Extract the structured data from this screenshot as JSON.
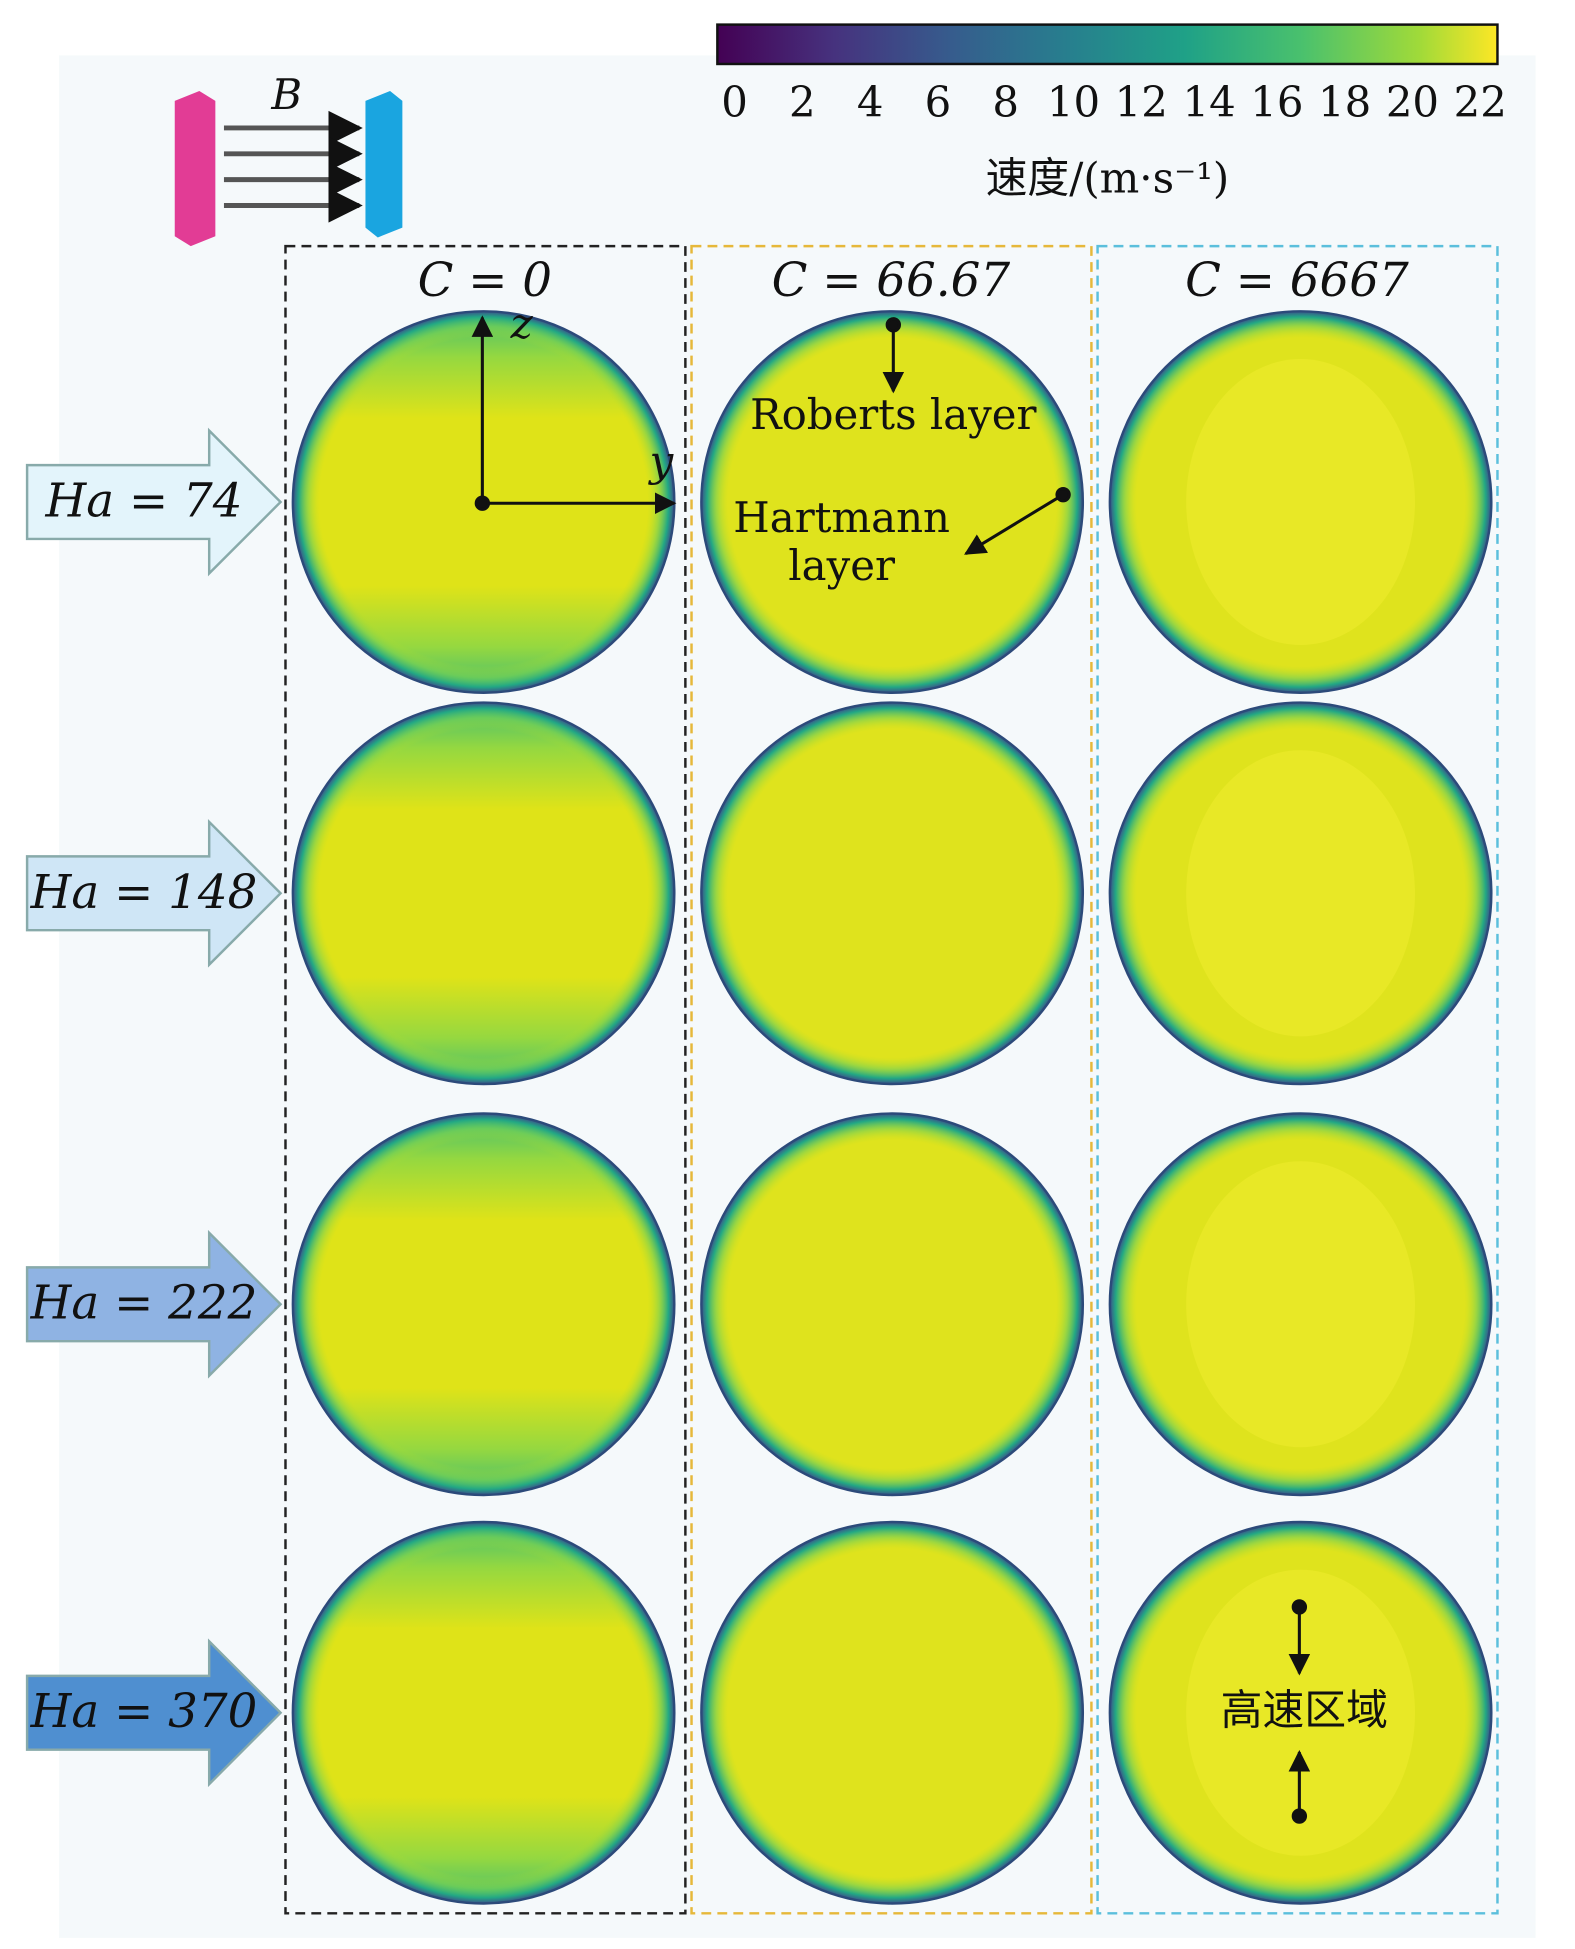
{
  "colorbar": {
    "ticks": [
      0,
      2,
      4,
      6,
      8,
      10,
      12,
      14,
      16,
      18,
      20,
      22
    ],
    "label": "速度/(m·s⁻¹)"
  },
  "field_label": "B",
  "columns": [
    "C = 0",
    "C = 66.67",
    "C = 6667"
  ],
  "rows": [
    "Ha = 74",
    "Ha = 148",
    "Ha = 222",
    "Ha = 370"
  ],
  "annotations": {
    "z_axis": "z",
    "y_axis": "y",
    "roberts_layer": "Roberts layer",
    "hartmann_layer": [
      "Hartmann",
      "layer"
    ],
    "high_speed_region": "高速区域"
  }
}
